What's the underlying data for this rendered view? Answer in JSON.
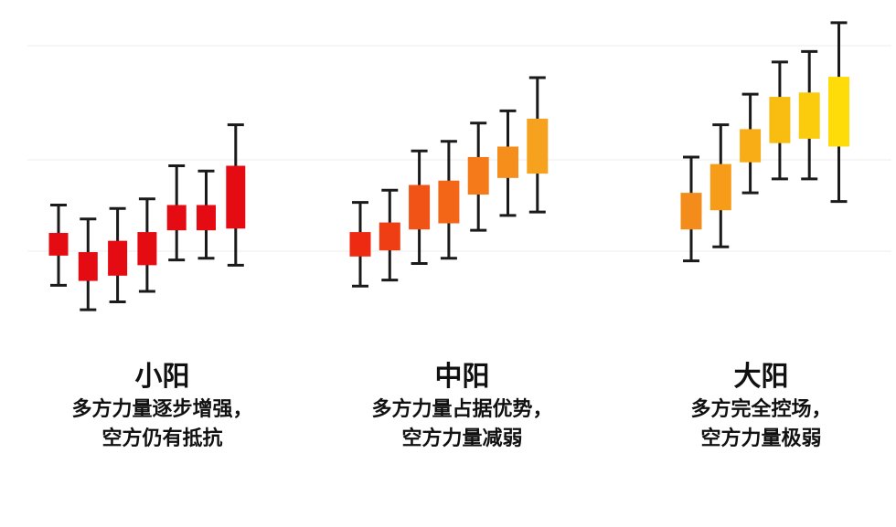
{
  "chart_data": [
    {
      "type": "candlestick",
      "title": "小阳",
      "desc_lines": [
        "多方力量逐步增强，",
        "空方仍有抵抗"
      ],
      "color": "#e40c12",
      "candles": [
        {
          "open": 108,
          "close": 134,
          "low": 74,
          "high": 166
        },
        {
          "open": 79,
          "close": 112,
          "low": 46,
          "high": 150
        },
        {
          "open": 85,
          "close": 125,
          "low": 55,
          "high": 162
        },
        {
          "open": 97,
          "close": 135,
          "low": 67,
          "high": 173
        },
        {
          "open": 137,
          "close": 166,
          "low": 103,
          "high": 211
        },
        {
          "open": 137,
          "close": 166,
          "low": 105,
          "high": 205
        },
        {
          "open": 139,
          "close": 211,
          "low": 97,
          "high": 258
        }
      ]
    },
    {
      "type": "candlestick",
      "title": "中阳",
      "desc_lines": [
        "多方力量占据优势，",
        "空方力量减弱"
      ],
      "color_stops": [
        "#ee2a12",
        "#f7a21e"
      ],
      "candles": [
        {
          "open": 107,
          "close": 135,
          "low": 73,
          "high": 169
        },
        {
          "open": 114,
          "close": 146,
          "low": 80,
          "high": 183
        },
        {
          "open": 138,
          "close": 189,
          "low": 99,
          "high": 228
        },
        {
          "open": 145,
          "close": 194,
          "low": 105,
          "high": 239
        },
        {
          "open": 178,
          "close": 221,
          "low": 137,
          "high": 260
        },
        {
          "open": 197,
          "close": 233,
          "low": 154,
          "high": 274
        },
        {
          "open": 202,
          "close": 265,
          "low": 158,
          "high": 312
        }
      ]
    },
    {
      "type": "candlestick",
      "title": "大阳",
      "desc_lines": [
        "多方完全控场，",
        "空方力量极弱"
      ],
      "color_stops": [
        "#f48c1c",
        "#fddc0a"
      ],
      "candles": [
        {
          "open": 138,
          "close": 180,
          "low": 102,
          "high": 221
        },
        {
          "open": 160,
          "close": 213,
          "low": 118,
          "high": 258
        },
        {
          "open": 215,
          "close": 253,
          "low": 180,
          "high": 293
        },
        {
          "open": 237,
          "close": 290,
          "low": 196,
          "high": 330
        },
        {
          "open": 242,
          "close": 295,
          "low": 196,
          "high": 342
        },
        {
          "open": 233,
          "close": 313,
          "low": 170,
          "high": 375
        }
      ]
    }
  ]
}
